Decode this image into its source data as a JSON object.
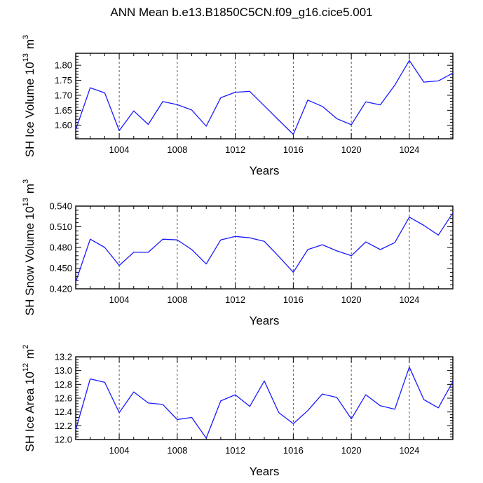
{
  "figure": {
    "title": "ANN Mean b.e13.B1850C5CN.f09_g16.cice5.001"
  },
  "colors": {
    "line": "#1a1aff",
    "frame": "#000000",
    "grid": "#555555"
  },
  "chart_data": [
    {
      "type": "line",
      "xlabel": "Years",
      "ylabel_main": "SH Ice Volume 10",
      "ylabel_exp": "13",
      "ylabel_unit": "m",
      "ylabel_unit_exp": "3",
      "xlim": [
        1001,
        1027
      ],
      "ylim": [
        1.555,
        1.84
      ],
      "xticks": [
        1004,
        1008,
        1012,
        1016,
        1020,
        1024
      ],
      "yticks": [
        "1.60",
        "1.65",
        "1.70",
        "1.75",
        "1.80"
      ],
      "grid_x": true,
      "x": [
        1001,
        1002,
        1003,
        1004,
        1005,
        1006,
        1007,
        1008,
        1009,
        1010,
        1011,
        1012,
        1013,
        1014,
        1015,
        1016,
        1017,
        1018,
        1019,
        1020,
        1021,
        1022,
        1023,
        1024,
        1025,
        1026,
        1027
      ],
      "values": [
        1.585,
        1.725,
        1.708,
        1.582,
        1.648,
        1.603,
        1.679,
        1.669,
        1.651,
        1.597,
        1.692,
        1.71,
        1.713,
        1.665,
        1.617,
        1.57,
        1.684,
        1.663,
        1.622,
        1.602,
        1.678,
        1.668,
        1.734,
        1.816,
        1.744,
        1.748,
        1.774
      ]
    },
    {
      "type": "line",
      "xlabel": "Years",
      "ylabel_main": "SH Snow Volume 10",
      "ylabel_exp": "13",
      "ylabel_unit": "m",
      "ylabel_unit_exp": "3",
      "xlim": [
        1001,
        1027
      ],
      "ylim": [
        0.42,
        0.54
      ],
      "xticks": [
        1004,
        1008,
        1012,
        1016,
        1020,
        1024
      ],
      "yticks": [
        "0.420",
        "0.450",
        "0.480",
        "0.510",
        "0.540"
      ],
      "grid_x": true,
      "x": [
        1001,
        1002,
        1003,
        1004,
        1005,
        1006,
        1007,
        1008,
        1009,
        1010,
        1011,
        1012,
        1013,
        1014,
        1015,
        1016,
        1017,
        1018,
        1019,
        1020,
        1021,
        1022,
        1023,
        1024,
        1025,
        1026,
        1027
      ],
      "values": [
        0.43,
        0.492,
        0.48,
        0.454,
        0.473,
        0.473,
        0.492,
        0.491,
        0.477,
        0.456,
        0.491,
        0.496,
        0.494,
        0.489,
        0.467,
        0.444,
        0.477,
        0.484,
        0.475,
        0.468,
        0.488,
        0.477,
        0.487,
        0.524,
        0.512,
        0.498,
        0.53
      ]
    },
    {
      "type": "line",
      "xlabel": "Years",
      "ylabel_main": "SH Ice Area 10",
      "ylabel_exp": "12",
      "ylabel_unit": "m",
      "ylabel_unit_exp": "2",
      "xlim": [
        1001,
        1027
      ],
      "ylim": [
        12.0,
        13.2
      ],
      "xticks": [
        1004,
        1008,
        1012,
        1016,
        1020,
        1024
      ],
      "yticks": [
        "12.0",
        "12.2",
        "12.4",
        "12.6",
        "12.8",
        "13.0",
        "13.2"
      ],
      "grid_x": true,
      "x": [
        1001,
        1002,
        1003,
        1004,
        1005,
        1006,
        1007,
        1008,
        1009,
        1010,
        1011,
        1012,
        1013,
        1014,
        1015,
        1016,
        1017,
        1018,
        1019,
        1020,
        1021,
        1022,
        1023,
        1024,
        1025,
        1026,
        1027
      ],
      "values": [
        12.14,
        12.88,
        12.83,
        12.39,
        12.69,
        12.53,
        12.51,
        12.29,
        12.32,
        12.02,
        12.56,
        12.65,
        12.48,
        12.85,
        12.39,
        12.23,
        12.42,
        12.66,
        12.61,
        12.3,
        12.65,
        12.49,
        12.44,
        13.05,
        12.58,
        12.46,
        12.84
      ]
    }
  ]
}
